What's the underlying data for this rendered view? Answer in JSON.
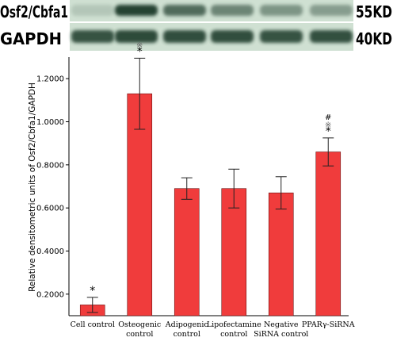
{
  "western_blot": {
    "rows": [
      {
        "label": "Osf2/Cbfa1",
        "size": "55KD",
        "intensities": [
          0.15,
          0.95,
          0.7,
          0.55,
          0.45,
          0.4
        ]
      },
      {
        "label": "GAPDH",
        "size": "40KD",
        "intensities": [
          0.85,
          0.9,
          0.88,
          0.88,
          0.85,
          0.87
        ]
      }
    ],
    "band_color": "#1f3b2a",
    "background_color": "#cfe0d2"
  },
  "chart_data": {
    "type": "bar",
    "categories": [
      [
        "Cell control"
      ],
      [
        "Osteogenic",
        "control"
      ],
      [
        "Adipogenic",
        "control"
      ],
      [
        "Lipofectamine",
        "control"
      ],
      [
        "Negative",
        "SiRNA control"
      ],
      [
        "PPARγ-SiRNA"
      ]
    ],
    "values": [
      0.15,
      1.13,
      0.69,
      0.69,
      0.67,
      0.86
    ],
    "error": [
      0.035,
      0.165,
      0.05,
      0.09,
      0.075,
      0.065
    ],
    "annotations": [
      [
        "*"
      ],
      [
        "*",
        "※"
      ],
      [],
      [],
      [],
      [
        "*",
        "※",
        "#"
      ]
    ],
    "ylabel": "Relative densitometric units of Osf2/Cbfa1/GAPDH",
    "xlabel": "",
    "ylim": [
      0.1,
      1.3
    ],
    "yticks": [
      "0.2000",
      "0.4000",
      "0.6000",
      "0.8000",
      "1.0000",
      "1.2000"
    ],
    "ytick_values": [
      0.2,
      0.4,
      0.6,
      0.8,
      1.0,
      1.2
    ],
    "bar_color": "#f03c3c",
    "grid": false,
    "legend": "none"
  }
}
